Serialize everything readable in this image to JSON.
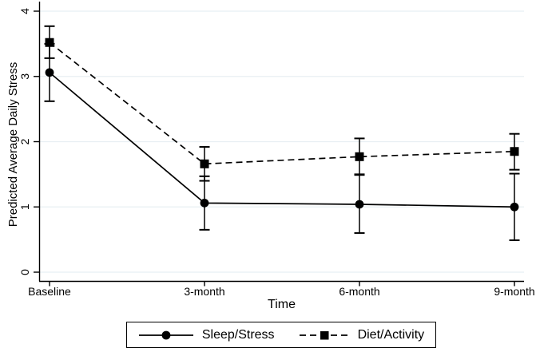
{
  "figure": {
    "background": "#ffffff",
    "axis_color": "#000000",
    "grid_color": "#e8eff3",
    "text_color": "#000000"
  },
  "chart_data": {
    "type": "line",
    "title": "",
    "xlabel": "Time",
    "ylabel": "Predicted Average Daily Stress",
    "categories": [
      "Baseline",
      "3-month",
      "6-month",
      "9-month"
    ],
    "yticks": [
      0,
      1,
      2,
      3,
      4
    ],
    "ylim": [
      0,
      4
    ],
    "grid": "horizontal light-blue gridlines at integer y values",
    "legend_position": "bottom-center boxed",
    "error_bars": true,
    "series": [
      {
        "name": "Sleep/Stress",
        "marker": "filled-circle",
        "line_style": "solid",
        "color": "#000000",
        "values": [
          3.06,
          1.06,
          1.04,
          1.0
        ],
        "ci_low": [
          2.62,
          0.65,
          0.6,
          0.49
        ],
        "ci_high": [
          3.5,
          1.47,
          1.49,
          1.51
        ]
      },
      {
        "name": "Diet/Activity",
        "marker": "filled-square",
        "line_style": "dashed",
        "color": "#000000",
        "values": [
          3.52,
          1.66,
          1.77,
          1.85
        ],
        "ci_low": [
          3.28,
          1.4,
          1.5,
          1.57
        ],
        "ci_high": [
          3.77,
          1.92,
          2.05,
          2.12
        ]
      }
    ]
  }
}
